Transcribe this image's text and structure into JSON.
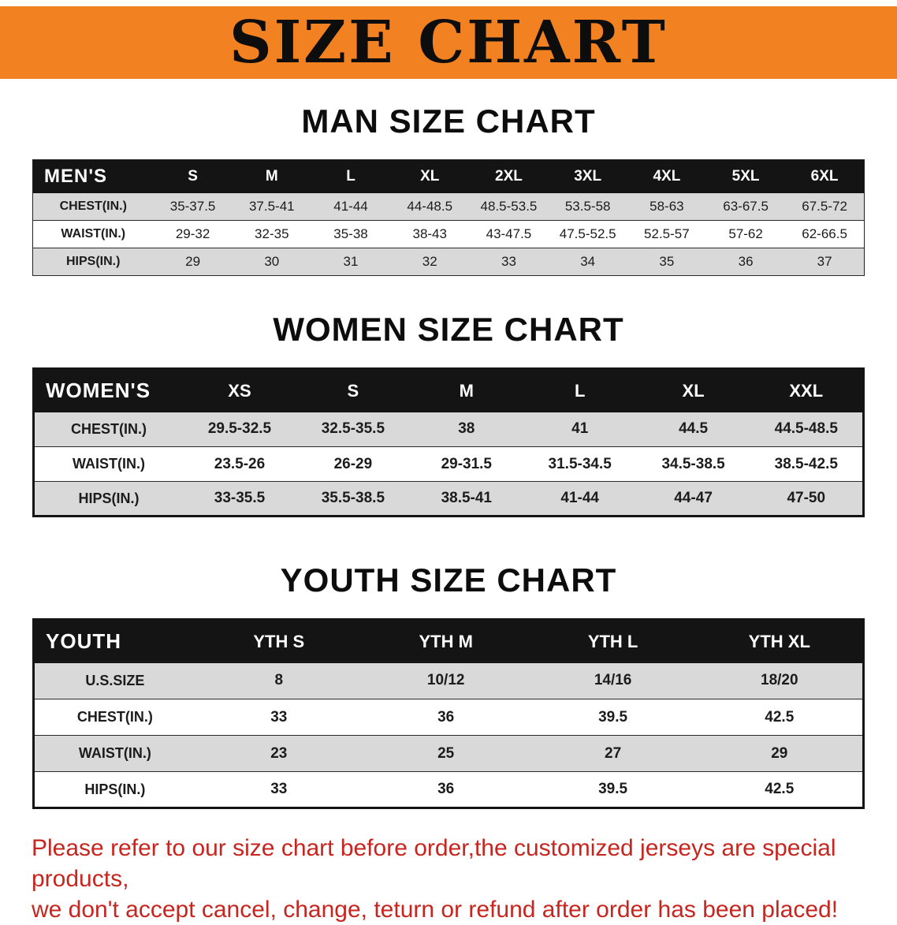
{
  "banner": {
    "title": "SIZE CHART"
  },
  "colors": {
    "banner_bg": "#f28122",
    "table_header_bg": "#141414",
    "row_stripe": "#d9d9d9",
    "disclaimer_text": "#c7251f"
  },
  "sections": {
    "men": {
      "heading": "MAN SIZE CHART",
      "table": {
        "header": [
          "MEN'S",
          "S",
          "M",
          "L",
          "XL",
          "2XL",
          "3XL",
          "4XL",
          "5XL",
          "6XL"
        ],
        "rows": [
          [
            "CHEST(IN.)",
            "35-37.5",
            "37.5-41",
            "41-44",
            "44-48.5",
            "48.5-53.5",
            "53.5-58",
            "58-63",
            "63-67.5",
            "67.5-72"
          ],
          [
            "WAIST(IN.)",
            "29-32",
            "32-35",
            "35-38",
            "38-43",
            "43-47.5",
            "47.5-52.5",
            "52.5-57",
            "57-62",
            "62-66.5"
          ],
          [
            "HIPS(IN.)",
            "29",
            "30",
            "31",
            "32",
            "33",
            "34",
            "35",
            "36",
            "37"
          ]
        ]
      }
    },
    "women": {
      "heading": "WOMEN SIZE CHART",
      "table": {
        "header": [
          "WOMEN'S",
          "XS",
          "S",
          "M",
          "L",
          "XL",
          "XXL"
        ],
        "rows": [
          [
            "CHEST(IN.)",
            "29.5-32.5",
            "32.5-35.5",
            "38",
            "41",
            "44.5",
            "44.5-48.5"
          ],
          [
            "WAIST(IN.)",
            "23.5-26",
            "26-29",
            "29-31.5",
            "31.5-34.5",
            "34.5-38.5",
            "38.5-42.5"
          ],
          [
            "HIPS(IN.)",
            "33-35.5",
            "35.5-38.5",
            "38.5-41",
            "41-44",
            "44-47",
            "47-50"
          ]
        ]
      }
    },
    "youth": {
      "heading": "YOUTH SIZE CHART",
      "table": {
        "header": [
          "YOUTH",
          "YTH S",
          "YTH M",
          "YTH L",
          "YTH XL"
        ],
        "rows": [
          [
            "U.S.SIZE",
            "8",
            "10/12",
            "14/16",
            "18/20"
          ],
          [
            "CHEST(IN.)",
            "33",
            "36",
            "39.5",
            "42.5"
          ],
          [
            "WAIST(IN.)",
            "23",
            "25",
            "27",
            "29"
          ],
          [
            "HIPS(IN.)",
            "33",
            "36",
            "39.5",
            "42.5"
          ]
        ]
      }
    }
  },
  "disclaimer": {
    "line1": "Please refer to our size chart before order,the customized jerseys are special products,",
    "line2": "we don't accept cancel, change, teturn or refund after order has been placed!"
  }
}
